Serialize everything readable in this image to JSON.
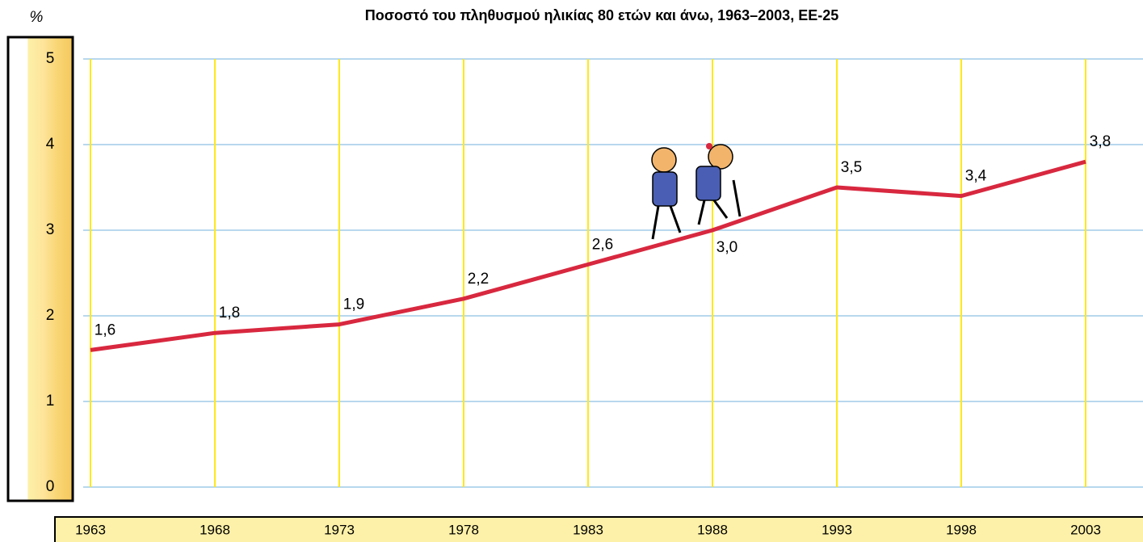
{
  "chart_data": {
    "type": "line",
    "title": "Ποσοστό του πληθυσμού ηλικίας 80 ετών και άνω, 1963–2003, EE-25",
    "y_label": "%",
    "categories": [
      "1963",
      "1968",
      "1973",
      "1978",
      "1983",
      "1988",
      "1993",
      "1998",
      "2003"
    ],
    "values": [
      1.6,
      1.8,
      1.9,
      2.2,
      2.6,
      3.0,
      3.5,
      3.4,
      3.8
    ],
    "value_labels": [
      "1,6",
      "1,8",
      "1,9",
      "2,2",
      "2,6",
      "3,0",
      "3,5",
      "3,4",
      "3,8"
    ],
    "color": "#d8283f",
    "ylim": [
      0,
      5
    ],
    "yticks": [
      0,
      1,
      2,
      3,
      4,
      5
    ],
    "grid": true
  }
}
